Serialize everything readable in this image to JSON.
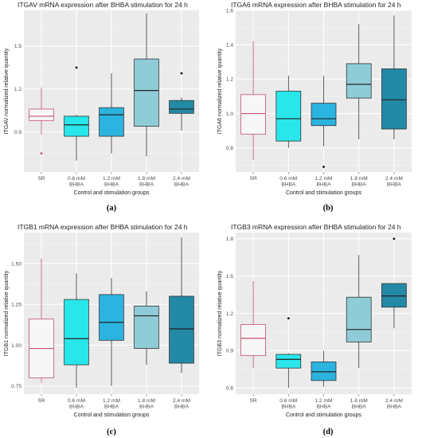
{
  "chart_data": [
    {
      "type": "box",
      "title": "ITGAV mRNA expression after BHBA stimulation for 24 h",
      "xlabel": "Control and stimulation groups",
      "ylabel": "ITGAV normalized relative quantity",
      "caption": "(a)",
      "ylim": [
        0.62,
        1.75
      ],
      "yticks": [
        "0.9",
        "1.2",
        "1.5"
      ],
      "ytick_values": [
        0.9,
        1.2,
        1.5
      ],
      "grid": true,
      "categories": [
        [
          "SR"
        ],
        [
          "0.6 mM",
          "BHBA"
        ],
        [
          "1.2 mM",
          "BHBA"
        ],
        [
          "1.8 mM",
          "BHBA"
        ],
        [
          "2.4 mM",
          "BHBA"
        ]
      ],
      "colors": [
        "#f7f7f7",
        "#28e6ea",
        "#2bb4e0",
        "#8ecdd8",
        "#2389a7"
      ],
      "boxes": [
        {
          "min": 0.88,
          "q1": 0.98,
          "median": 1.01,
          "q3": 1.06,
          "max": 1.21,
          "outliers": [
            0.75
          ]
        },
        {
          "min": 0.7,
          "q1": 0.87,
          "median": 0.95,
          "q3": 1.01,
          "max": 1.02,
          "outliers": [
            1.35
          ]
        },
        {
          "min": 0.75,
          "q1": 0.87,
          "median": 1.02,
          "q3": 1.07,
          "max": 1.31,
          "outliers": []
        },
        {
          "min": 0.73,
          "q1": 0.94,
          "median": 1.19,
          "q3": 1.41,
          "max": 1.73,
          "outliers": []
        },
        {
          "min": 0.91,
          "q1": 1.03,
          "median": 1.06,
          "q3": 1.12,
          "max": 1.14,
          "outliers": [
            1.31
          ]
        }
      ]
    },
    {
      "type": "box",
      "title": "ITGA6 mRNA expression after BHBA stimulation for 24 h",
      "xlabel": "Control and stimulation groups",
      "ylabel": "ITGA6 normalized relative quantity",
      "caption": "(b)",
      "ylim": [
        0.66,
        1.6
      ],
      "yticks": [
        "0.8",
        "1.0",
        "1.2",
        "1.4",
        "1.6"
      ],
      "ytick_values": [
        0.8,
        1.0,
        1.2,
        1.4,
        1.6
      ],
      "grid": true,
      "categories": [
        [
          "SR"
        ],
        [
          "0.6 mM",
          "BHBA"
        ],
        [
          "1.2 mM",
          "BHBA"
        ],
        [
          "1.8 mM",
          "BHBA"
        ],
        [
          "2.4 mM",
          "BHBA"
        ]
      ],
      "colors": [
        "#f7f7f7",
        "#28e6ea",
        "#2bb4e0",
        "#8ecdd8",
        "#2389a7"
      ],
      "boxes": [
        {
          "min": 0.73,
          "q1": 0.88,
          "median": 1.0,
          "q3": 1.11,
          "max": 1.42,
          "outliers": []
        },
        {
          "min": 0.8,
          "q1": 0.84,
          "median": 0.97,
          "q3": 1.13,
          "max": 1.22,
          "outliers": []
        },
        {
          "min": 0.81,
          "q1": 0.93,
          "median": 0.97,
          "q3": 1.06,
          "max": 1.22,
          "outliers": [
            0.69
          ]
        },
        {
          "min": 0.85,
          "q1": 1.09,
          "median": 1.17,
          "q3": 1.29,
          "max": 1.52,
          "outliers": []
        },
        {
          "min": 0.85,
          "q1": 0.91,
          "median": 1.08,
          "q3": 1.26,
          "max": 1.57,
          "outliers": []
        }
      ]
    },
    {
      "type": "box",
      "title": "ITGB1 mRNA expression after BHBA stimulation for 24 h",
      "xlabel": "Control and stimulation groups",
      "ylabel": "ITGB1 normalized relative quantity",
      "caption": "(c)",
      "ylim": [
        0.7,
        1.69
      ],
      "yticks": [
        "0.75",
        "1.00",
        "1.25",
        "1.50"
      ],
      "ytick_values": [
        0.75,
        1.0,
        1.25,
        1.5
      ],
      "grid": true,
      "categories": [
        [
          "SR"
        ],
        [
          "0.6 mM",
          "BHBA"
        ],
        [
          "1.2 mM",
          "BHBA"
        ],
        [
          "1.8 mM",
          "BHBA"
        ],
        [
          "2.4 mM",
          "BHBA"
        ]
      ],
      "colors": [
        "#f7f7f7",
        "#28e6ea",
        "#2bb4e0",
        "#8ecdd8",
        "#2389a7"
      ],
      "boxes": [
        {
          "min": 0.77,
          "q1": 0.8,
          "median": 0.98,
          "q3": 1.16,
          "max": 1.53,
          "outliers": []
        },
        {
          "min": 0.74,
          "q1": 0.88,
          "median": 1.04,
          "q3": 1.28,
          "max": 1.44,
          "outliers": []
        },
        {
          "min": 0.75,
          "q1": 1.03,
          "median": 1.14,
          "q3": 1.31,
          "max": 1.41,
          "outliers": []
        },
        {
          "min": 0.88,
          "q1": 0.98,
          "median": 1.18,
          "q3": 1.24,
          "max": 1.33,
          "outliers": []
        },
        {
          "min": 0.83,
          "q1": 0.89,
          "median": 1.1,
          "q3": 1.3,
          "max": 1.66,
          "outliers": []
        }
      ]
    },
    {
      "type": "box",
      "title": "ITGB3 mRNA expression after BHBA stimulation for 24 h",
      "xlabel": "Control and stimulation groups",
      "ylabel": "ITGB3 normalized relative quantity",
      "caption": "(d)",
      "ylim": [
        0.55,
        1.85
      ],
      "yticks": [
        "0.6",
        "0.9",
        "1.2",
        "1.5",
        "1.8"
      ],
      "ytick_values": [
        0.6,
        0.9,
        1.2,
        1.5,
        1.8
      ],
      "grid": true,
      "categories": [
        [
          "SR"
        ],
        [
          "0.6 mM",
          "BHBA"
        ],
        [
          "1.2 mM",
          "BHBA"
        ],
        [
          "1.8 mM",
          "BHBA"
        ],
        [
          "2.4 mM",
          "BHBA"
        ]
      ],
      "colors": [
        "#f7f7f7",
        "#28e6ea",
        "#2bb4e0",
        "#8ecdd8",
        "#2389a7"
      ],
      "boxes": [
        {
          "min": 0.76,
          "q1": 0.86,
          "median": 1.0,
          "q3": 1.11,
          "max": 1.46,
          "outliers": []
        },
        {
          "min": 0.6,
          "q1": 0.76,
          "median": 0.83,
          "q3": 0.87,
          "max": 0.88,
          "outliers": [
            1.16
          ]
        },
        {
          "min": 0.61,
          "q1": 0.66,
          "median": 0.73,
          "q3": 0.81,
          "max": 0.9,
          "outliers": []
        },
        {
          "min": 0.76,
          "q1": 0.97,
          "median": 1.07,
          "q3": 1.33,
          "max": 1.67,
          "outliers": []
        },
        {
          "min": 1.08,
          "q1": 1.25,
          "median": 1.34,
          "q3": 1.44,
          "max": 1.44,
          "outliers": [
            1.8
          ]
        }
      ]
    }
  ]
}
